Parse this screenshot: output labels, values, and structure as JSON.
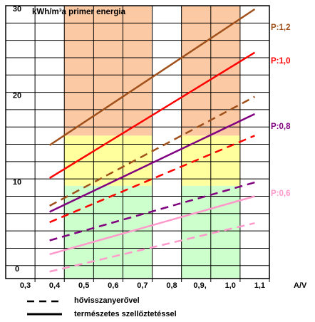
{
  "chart_data": {
    "type": "line",
    "title": "kWh/m³a primer energia",
    "xlabel": "A/V",
    "ylabel": "",
    "xlim": [
      0.2,
      1.1
    ],
    "ylim": [
      -1.5,
      30
    ],
    "x_ticks": [
      "0,3",
      "0,4",
      "0,5",
      "0,6",
      "0,7",
      "0,8",
      "0,9,",
      "1,0",
      "1,1"
    ],
    "y_ticks": [
      "0",
      "10",
      "20",
      "30"
    ],
    "colors": {
      "orange_band": "#fbc9a3",
      "yellow_band": "#ffff9d",
      "green_band": "#ccffcc",
      "P12": "#a0501a",
      "P10": "#ff0000",
      "P08": "#800080",
      "P06": "#ff99cc"
    },
    "bands": [
      {
        "name": "orange",
        "x_ranges": [
          [
            0.4,
            0.7
          ],
          [
            0.8,
            1.0
          ]
        ],
        "y_range": [
          15,
          30
        ]
      },
      {
        "name": "yellow",
        "x_ranges": [
          [
            0.4,
            0.7
          ],
          [
            0.8,
            1.0
          ]
        ],
        "y_range": [
          9.2,
          15
        ]
      },
      {
        "name": "green",
        "x_ranges": [
          [
            0.4,
            0.7
          ],
          [
            0.8,
            1.0
          ]
        ],
        "y_range": [
          -1.5,
          9.2
        ]
      }
    ],
    "series": [
      {
        "name": "P:1,2",
        "key": "P12",
        "style": "solid",
        "x": [
          0.35,
          1.05
        ],
        "y": [
          13.9,
          29.6
        ]
      },
      {
        "name": "P:1,0",
        "key": "P10",
        "style": "solid",
        "x": [
          0.35,
          1.05
        ],
        "y": [
          10.1,
          24.6
        ]
      },
      {
        "name": "P:0,8",
        "key": "P08",
        "style": "solid",
        "x": [
          0.35,
          1.05
        ],
        "y": [
          6.2,
          17.5
        ]
      },
      {
        "name": "P:0,6",
        "key": "P06",
        "style": "solid",
        "x": [
          0.35,
          1.05
        ],
        "y": [
          1.3,
          8.0
        ]
      },
      {
        "name": "P:1,2 hővisszanyerővel",
        "key": "P12",
        "style": "dashed",
        "x": [
          0.35,
          1.05
        ],
        "y": [
          6.9,
          19.5
        ]
      },
      {
        "name": "P:1,0 hővisszanyerővel",
        "key": "P10",
        "style": "dashed",
        "x": [
          0.35,
          1.05
        ],
        "y": [
          5.0,
          15.0
        ]
      },
      {
        "name": "P:0,8 hővisszanyerővel",
        "key": "P08",
        "style": "dashed",
        "x": [
          0.35,
          1.05
        ],
        "y": [
          2.9,
          9.6
        ]
      },
      {
        "name": "P:0,6 hővisszanyerővel",
        "key": "P06",
        "style": "dashed",
        "x": [
          0.35,
          1.05
        ],
        "y": [
          -0.7,
          4.9
        ]
      }
    ],
    "series_labels": [
      {
        "text": "P:1,2",
        "key": "P12"
      },
      {
        "text": "P:1,0",
        "key": "P10"
      },
      {
        "text": "P:0,8",
        "key": "P08"
      },
      {
        "text": "P:0,6",
        "key": "P06"
      }
    ],
    "legend": [
      {
        "label": "hővisszanyerővel",
        "style": "dashed"
      },
      {
        "label": "természetes szellőztetéssel",
        "style": "solid"
      }
    ],
    "grid": true,
    "legend_position": "bottom"
  }
}
